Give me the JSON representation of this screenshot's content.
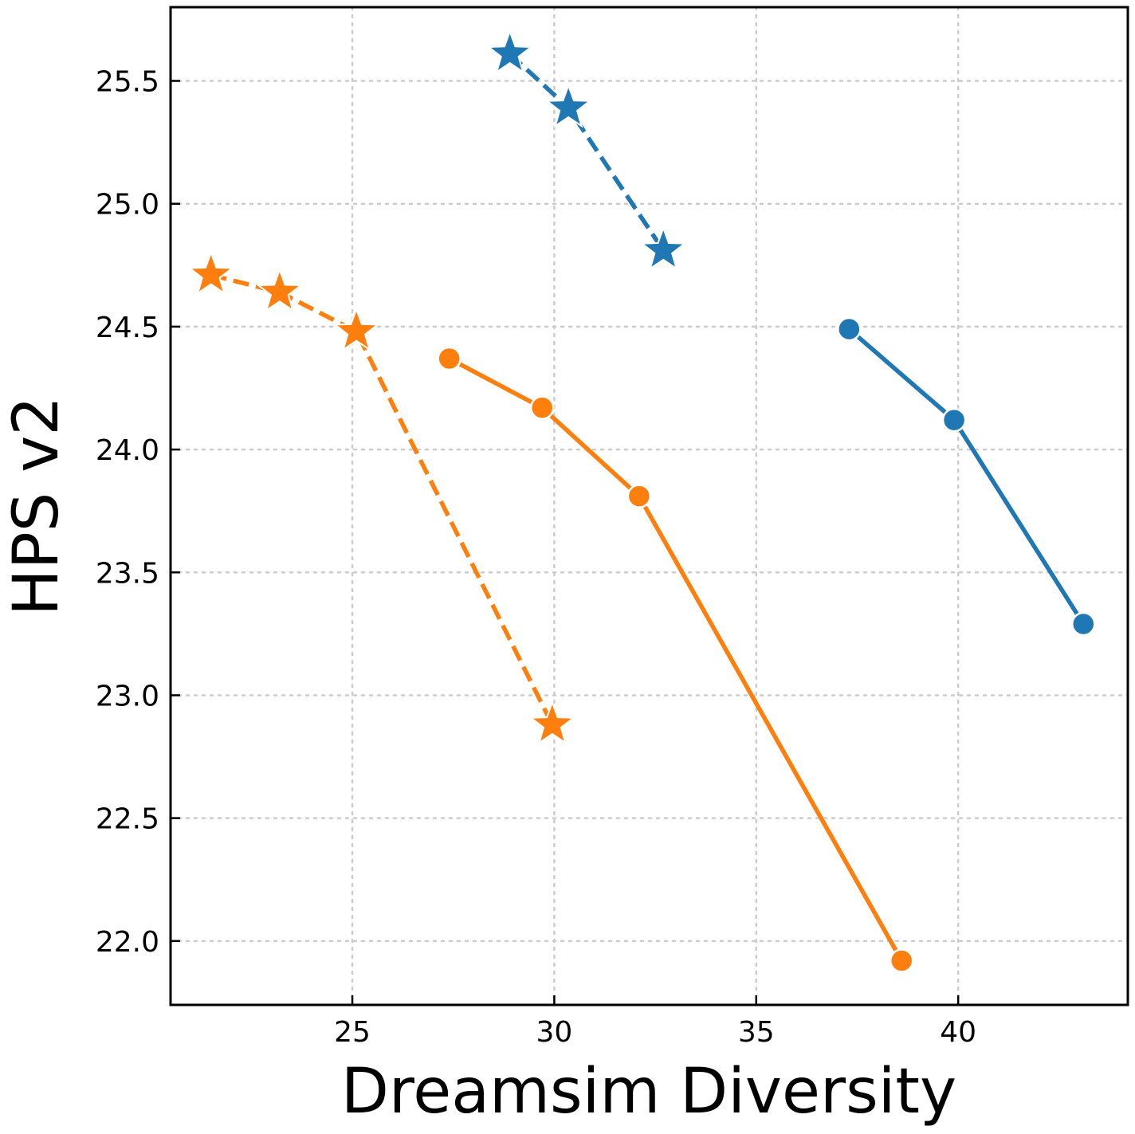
{
  "chart_data": {
    "type": "line",
    "title": "",
    "xlabel": "Dreamsim Diversity",
    "ylabel": "HPS v2",
    "xlim": [
      20.5,
      44.2
    ],
    "ylim": [
      21.74,
      25.8
    ],
    "xticks": [
      25,
      30,
      35,
      40
    ],
    "xtick_labels": [
      "25",
      "30",
      "35",
      "40"
    ],
    "yticks": [
      22.0,
      22.5,
      23.0,
      23.5,
      24.0,
      24.5,
      25.0,
      25.5
    ],
    "ytick_labels": [
      "22.0",
      "22.5",
      "23.0",
      "23.5",
      "24.0",
      "24.5",
      "25.0",
      "25.5"
    ],
    "grid": true,
    "legend": "none",
    "series": [
      {
        "color": "#1f77b4",
        "line_style": "dashed",
        "marker": "star",
        "x": [
          28.9,
          30.35,
          32.7
        ],
        "y": [
          25.61,
          25.39,
          24.81
        ]
      },
      {
        "color": "#1f77b4",
        "line_style": "solid",
        "marker": "circle",
        "x": [
          37.3,
          39.9,
          43.1
        ],
        "y": [
          24.49,
          24.12,
          23.29
        ]
      },
      {
        "color": "#ff7f0e",
        "line_style": "dashed",
        "marker": "star",
        "x": [
          21.5,
          23.2,
          25.1,
          29.95
        ],
        "y": [
          24.71,
          24.64,
          24.48,
          22.88
        ]
      },
      {
        "color": "#ff7f0e",
        "line_style": "solid",
        "marker": "circle",
        "x": [
          27.4,
          29.7,
          32.1,
          38.6
        ],
        "y": [
          24.37,
          24.17,
          23.81,
          21.92
        ]
      }
    ]
  }
}
